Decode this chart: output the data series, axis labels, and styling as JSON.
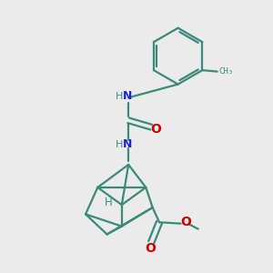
{
  "bg_color": "#ebebeb",
  "bond_color": "#3a8a7a",
  "N_color": "#2222cc",
  "O_color": "#cc0000",
  "lw": 1.6,
  "fig_size": [
    3.0,
    3.0
  ],
  "dpi": 100,
  "xlim": [
    0,
    10
  ],
  "ylim": [
    0,
    10
  ]
}
